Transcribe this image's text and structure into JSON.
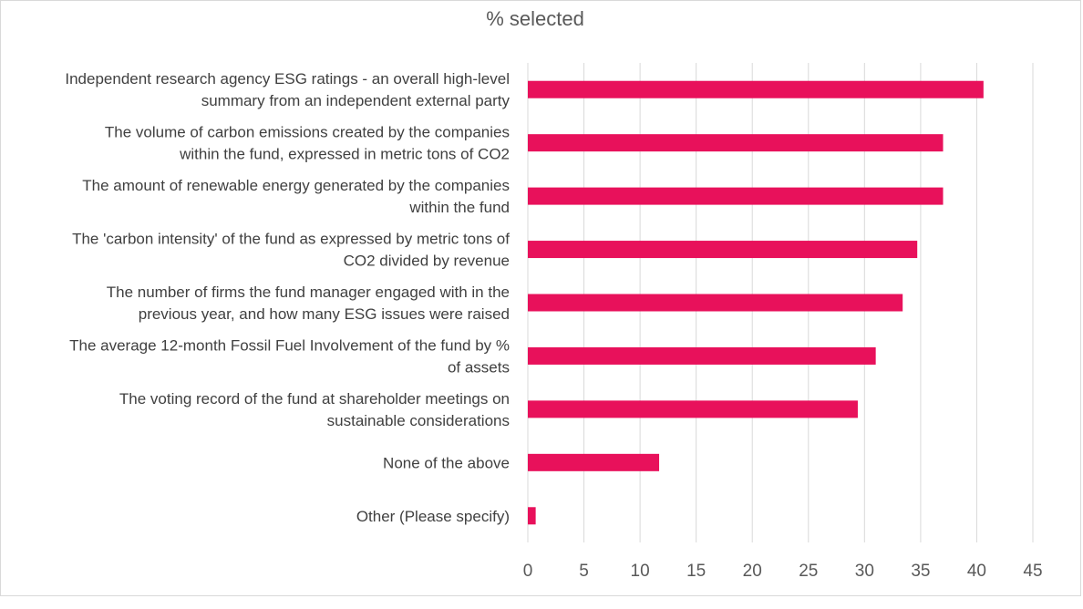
{
  "chart_data": {
    "type": "bar",
    "orientation": "horizontal",
    "title": "% selected",
    "xlabel": "",
    "ylabel": "",
    "xlim": [
      0,
      45
    ],
    "ticks": [
      0,
      5,
      10,
      15,
      20,
      25,
      30,
      35,
      40,
      45
    ],
    "grid": true,
    "bar_color": "#e8115b",
    "categories": [
      [
        "Independent research agency ESG ratings - an overall high-level",
        "summary from an independent external party"
      ],
      [
        "The volume of carbon emissions created by the companies",
        "within the fund, expressed in metric tons of CO2"
      ],
      [
        "The amount of renewable energy generated by the companies",
        "within the fund"
      ],
      [
        "The 'carbon intensity' of the fund as expressed by metric tons of",
        "CO2 divided by revenue"
      ],
      [
        "The number of firms the fund manager engaged with in the",
        "previous year, and how many ESG issues were raised"
      ],
      [
        "The average 12-month Fossil Fuel Involvement of the fund by %",
        "of assets"
      ],
      [
        "The voting record of the fund at shareholder meetings on",
        "sustainable considerations"
      ],
      [
        "None of the above"
      ],
      [
        "Other (Please specify)"
      ]
    ],
    "values": [
      40.6,
      37.0,
      37.0,
      34.7,
      33.4,
      31.0,
      29.4,
      11.7,
      0.7
    ]
  }
}
